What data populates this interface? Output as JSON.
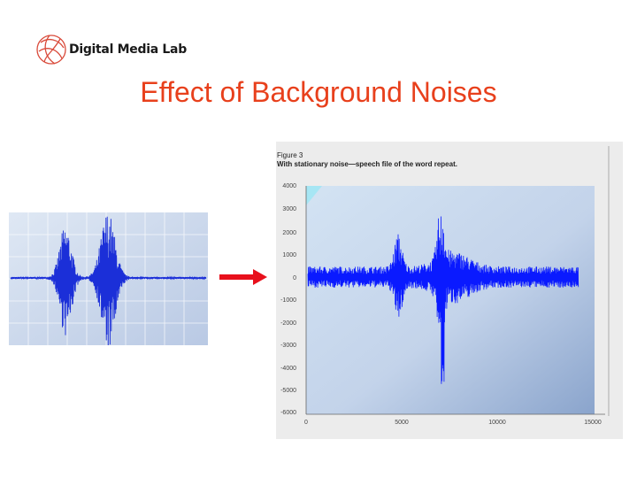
{
  "header": {
    "logo_text": "Digital Media Lab",
    "logo_icon": "globe-swirl-logo"
  },
  "slide": {
    "title": "Effect of Background Noises",
    "title_color": "#e8401c"
  },
  "arrow": {
    "icon": "right-arrow-icon",
    "color": "#e8101c"
  },
  "figure": {
    "heading_line1": "Figure 3",
    "heading_line2": "With stationary noise—speech file of the word repeat.",
    "y_ticks": [
      "4000",
      "3000",
      "2000",
      "1000",
      "0",
      "-1000",
      "-2000",
      "-3000",
      "-4000",
      "-5000",
      "-6000"
    ],
    "x_ticks": [
      "0",
      "5000",
      "10000",
      "15000"
    ],
    "wave_color": "#0a1aff"
  }
}
